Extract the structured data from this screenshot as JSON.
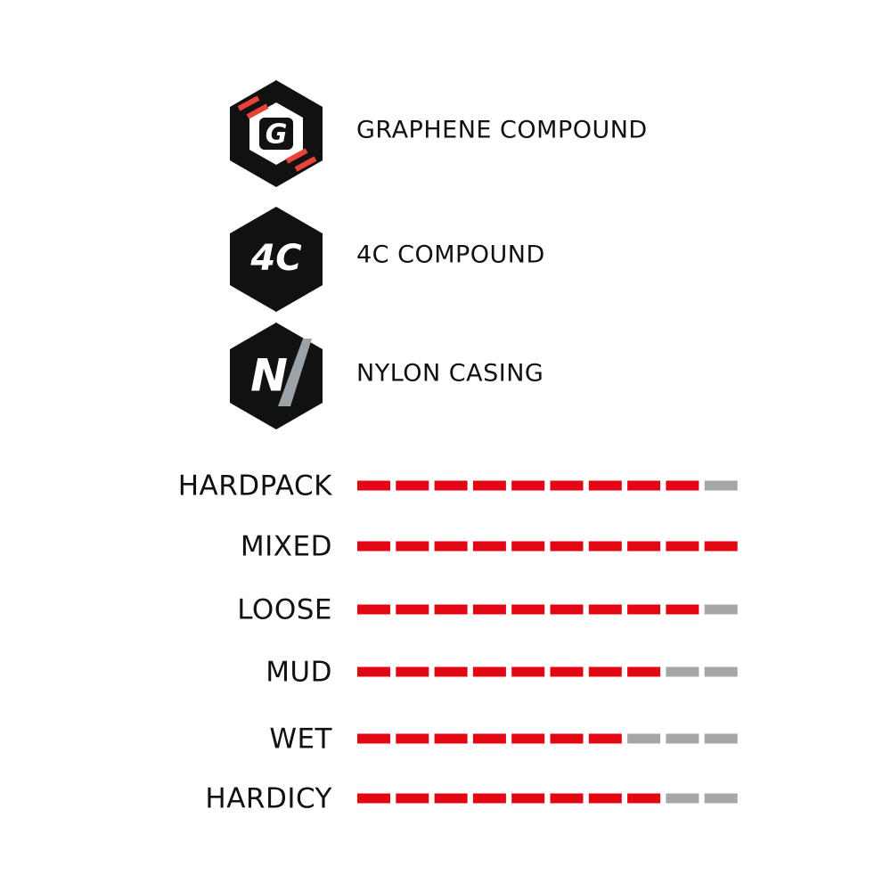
{
  "features": [
    {
      "icon": "G",
      "label": "GRAPHENE COMPOUND"
    },
    {
      "icon": "4C",
      "label": "4C COMPOUND"
    },
    {
      "icon": "N",
      "label": "NYLON CASING"
    }
  ],
  "ratings": {
    "scale_max": 10,
    "on_color": "#e30613",
    "off_color": "#a6a6a6",
    "rows": [
      {
        "label": "HARDPACK",
        "value": 9
      },
      {
        "label": "MIXED",
        "value": 10
      },
      {
        "label": "LOOSE",
        "value": 9
      },
      {
        "label": "MUD",
        "value": 8
      },
      {
        "label": "WET",
        "value": 7
      },
      {
        "label": "HARDICY",
        "value": 8
      }
    ]
  }
}
